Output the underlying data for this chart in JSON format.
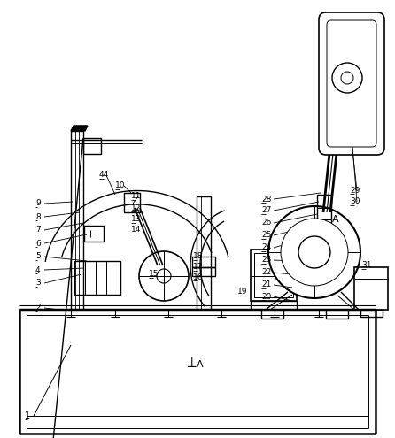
{
  "bg": "#ffffff",
  "lc": "#000000",
  "figsize": [
    4.46,
    4.95
  ],
  "dpi": 100
}
